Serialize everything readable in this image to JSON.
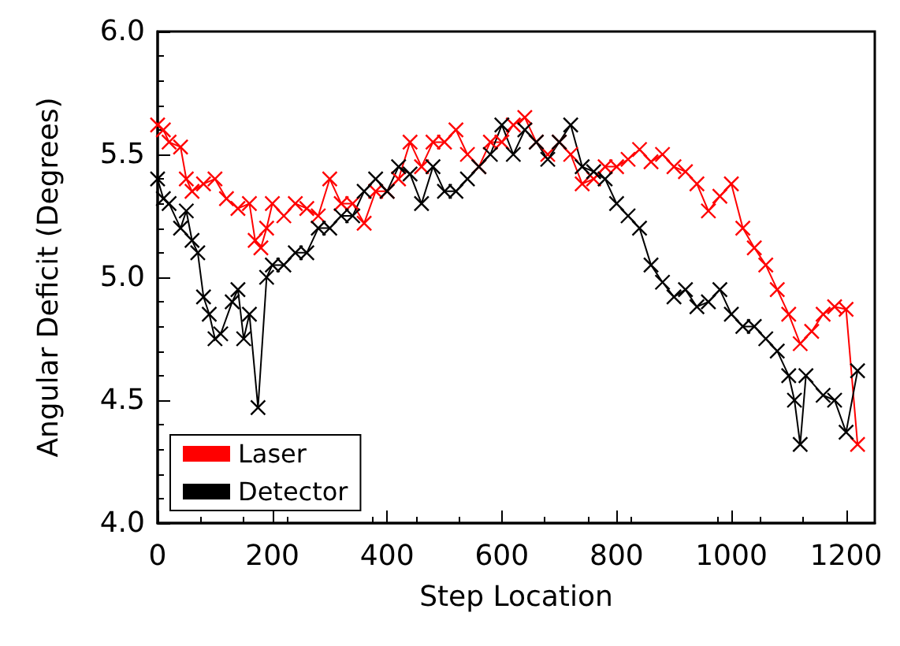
{
  "chart_data": {
    "type": "line",
    "xlabel": "Step Location",
    "ylabel": "Angular Deficit (Degrees)",
    "xlim": [
      0,
      1250
    ],
    "xticks": [
      0,
      200,
      400,
      600,
      800,
      1000,
      1200
    ],
    "ylim": [
      4.0,
      6.0
    ],
    "yticks": [
      {
        "value": 4.0,
        "label": "4.0"
      },
      {
        "value": 4.5,
        "label": "4.5"
      },
      {
        "value": 5.0,
        "label": "5.0"
      },
      {
        "value": 5.5,
        "label": "5.5"
      },
      {
        "value": 6.0,
        "label": "6.0"
      }
    ],
    "grid": false,
    "legend": "bottom left",
    "marker": "cross",
    "line_style": "solid",
    "series": [
      {
        "name": "Laser",
        "color": "#ff0000",
        "x": [
          0,
          10,
          20,
          40,
          50,
          60,
          80,
          100,
          120,
          140,
          160,
          170,
          180,
          190,
          200,
          220,
          240,
          260,
          280,
          300,
          320,
          340,
          360,
          380,
          400,
          420,
          440,
          460,
          480,
          500,
          520,
          540,
          560,
          580,
          600,
          620,
          640,
          660,
          680,
          700,
          720,
          740,
          760,
          780,
          800,
          820,
          840,
          860,
          880,
          900,
          920,
          940,
          960,
          980,
          1000,
          1020,
          1040,
          1060,
          1080,
          1100,
          1120,
          1140,
          1160,
          1180,
          1200,
          1220
        ],
        "values": [
          5.62,
          5.6,
          5.55,
          5.53,
          5.4,
          5.35,
          5.38,
          5.4,
          5.32,
          5.28,
          5.3,
          5.15,
          5.12,
          5.2,
          5.3,
          5.25,
          5.3,
          5.28,
          5.25,
          5.4,
          5.3,
          5.3,
          5.22,
          5.35,
          5.35,
          5.4,
          5.55,
          5.45,
          5.55,
          5.55,
          5.6,
          5.5,
          5.45,
          5.55,
          5.55,
          5.62,
          5.65,
          5.55,
          5.5,
          5.55,
          5.5,
          5.38,
          5.4,
          5.45,
          5.45,
          5.48,
          5.52,
          5.47,
          5.5,
          5.45,
          5.43,
          5.38,
          5.27,
          5.33,
          5.38,
          5.2,
          5.12,
          5.05,
          4.95,
          4.85,
          4.73,
          4.78,
          4.85,
          4.88,
          4.87,
          4.32
        ]
      },
      {
        "name": "Detector",
        "color": "#000000",
        "x": [
          0,
          10,
          20,
          40,
          50,
          60,
          70,
          80,
          90,
          100,
          110,
          130,
          140,
          150,
          160,
          175,
          190,
          200,
          220,
          240,
          260,
          280,
          300,
          320,
          340,
          360,
          380,
          400,
          420,
          440,
          460,
          480,
          500,
          520,
          540,
          560,
          580,
          600,
          620,
          640,
          660,
          680,
          700,
          720,
          740,
          760,
          780,
          800,
          820,
          840,
          860,
          880,
          900,
          920,
          940,
          960,
          980,
          1000,
          1020,
          1040,
          1060,
          1080,
          1100,
          1110,
          1120,
          1130,
          1160,
          1180,
          1200,
          1220
        ],
        "values": [
          5.4,
          5.32,
          5.3,
          5.2,
          5.27,
          5.15,
          5.1,
          4.92,
          4.85,
          4.75,
          4.77,
          4.9,
          4.95,
          4.75,
          4.85,
          4.47,
          5.0,
          5.05,
          5.05,
          5.1,
          5.1,
          5.2,
          5.2,
          5.25,
          5.25,
          5.35,
          5.4,
          5.35,
          5.45,
          5.42,
          5.3,
          5.45,
          5.35,
          5.35,
          5.4,
          5.45,
          5.5,
          5.62,
          5.5,
          5.6,
          5.55,
          5.48,
          5.55,
          5.62,
          5.45,
          5.43,
          5.4,
          5.3,
          5.25,
          5.2,
          5.05,
          4.98,
          4.92,
          4.95,
          4.88,
          4.9,
          4.95,
          4.85,
          4.8,
          4.8,
          4.75,
          4.7,
          4.6,
          4.5,
          4.32,
          4.6,
          4.52,
          4.5,
          4.37,
          4.62
        ]
      }
    ]
  }
}
